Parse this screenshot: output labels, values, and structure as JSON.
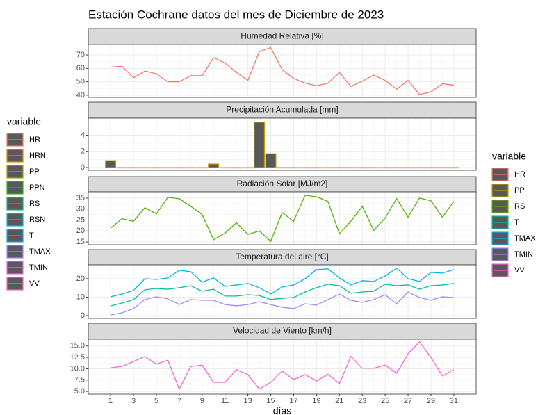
{
  "title": "Estación Cochrane datos del mes de Diciembre de 2023",
  "x_axis": {
    "label": "días",
    "lim": [
      -0.95,
      32.95
    ],
    "ticks": [
      1,
      3,
      5,
      7,
      9,
      11,
      13,
      15,
      17,
      19,
      21,
      23,
      25,
      27,
      29,
      31
    ]
  },
  "legends": [
    {
      "title": "variable",
      "entries": [
        {
          "name": "HR",
          "color": "#F8766D"
        },
        {
          "name": "HRN",
          "color": "#D89000"
        },
        {
          "name": "PP",
          "color": "#A3A500"
        },
        {
          "name": "PPN",
          "color": "#39B600"
        },
        {
          "name": "RS",
          "color": "#00BF7D"
        },
        {
          "name": "RSN",
          "color": "#00BFC4"
        },
        {
          "name": "T",
          "color": "#00B0F6"
        },
        {
          "name": "TMAX",
          "color": "#9590FF"
        },
        {
          "name": "TMIN",
          "color": "#E76BF3"
        },
        {
          "name": "VV",
          "color": "#FF62BC"
        }
      ]
    },
    {
      "title": "variable",
      "entries": [
        {
          "name": "HR",
          "color": "#F8766D"
        },
        {
          "name": "PP",
          "color": "#C49A00"
        },
        {
          "name": "RS",
          "color": "#53B400"
        },
        {
          "name": "T",
          "color": "#00C094"
        },
        {
          "name": "TMAX",
          "color": "#00B6EB"
        },
        {
          "name": "TMIN",
          "color": "#A58AFF"
        },
        {
          "name": "VV",
          "color": "#FB61D7"
        }
      ]
    }
  ],
  "chart_data": [
    {
      "type": "line",
      "title": "Humedad Relativa [%]",
      "ylim": [
        38.4,
        77.8
      ],
      "yticks": [
        40,
        50,
        60,
        70
      ],
      "x": [
        1,
        2,
        3,
        4,
        5,
        6,
        7,
        8,
        9,
        10,
        11,
        12,
        13,
        14,
        15,
        16,
        17,
        18,
        19,
        20,
        21,
        22,
        23,
        24,
        25,
        26,
        27,
        28,
        29,
        30,
        31
      ],
      "series": [
        {
          "name": "HR",
          "color": "#F8766D",
          "values": [
            61,
            61.5,
            53,
            58,
            56,
            50,
            50,
            54.5,
            54.5,
            68,
            64,
            57,
            51,
            72.5,
            75.5,
            59,
            52.5,
            49,
            47,
            49,
            57,
            46.5,
            50.5,
            55,
            51,
            44.5,
            51,
            40.5,
            42.5,
            48.5,
            47.5
          ]
        }
      ]
    },
    {
      "type": "bar",
      "title": "Precipitación Acumulada [mm]",
      "ylim": [
        -0.34,
        6.1
      ],
      "yticks": [
        0,
        2,
        4
      ],
      "x": [
        1,
        2,
        3,
        4,
        5,
        6,
        7,
        8,
        9,
        10,
        11,
        12,
        13,
        14,
        15,
        16,
        17,
        18,
        19,
        20,
        21,
        22,
        23,
        24,
        25,
        26,
        27,
        28,
        29,
        30,
        31
      ],
      "series": [
        {
          "name": "PP",
          "color": "#C49A00",
          "values": [
            0.85,
            0,
            0,
            0,
            0,
            0,
            0,
            0,
            0,
            0.43,
            0,
            0,
            0,
            5.6,
            1.7,
            0,
            0,
            0,
            0,
            0,
            0,
            0,
            0,
            0,
            0,
            0,
            0,
            0,
            0,
            0,
            0
          ]
        }
      ]
    },
    {
      "type": "line",
      "title": "Radiación Solar [MJ/m2]",
      "ylim": [
        13.75,
        37.8
      ],
      "yticks": [
        15,
        20,
        25,
        30,
        35
      ],
      "x": [
        1,
        2,
        3,
        4,
        5,
        6,
        7,
        8,
        9,
        10,
        11,
        12,
        13,
        14,
        15,
        16,
        17,
        18,
        19,
        20,
        21,
        22,
        23,
        24,
        25,
        26,
        27,
        28,
        29,
        30,
        31
      ],
      "series": [
        {
          "name": "RS",
          "color": "#53B400",
          "values": [
            21.25,
            25.6,
            24.4,
            30.6,
            27.8,
            35.3,
            34.7,
            31.25,
            27.5,
            16,
            19,
            23.75,
            18.4,
            20,
            15.3,
            28.4,
            24.4,
            36.25,
            35.6,
            33.4,
            18.75,
            24.4,
            31.25,
            20.3,
            25.9,
            34.7,
            26.25,
            35,
            33.75,
            26.25,
            33.4
          ]
        }
      ]
    },
    {
      "type": "line",
      "title": "Temperatura del aire [°C]",
      "ylim": [
        -1.5,
        27.5
      ],
      "yticks": [
        0,
        10,
        20
      ],
      "x": [
        1,
        2,
        3,
        4,
        5,
        6,
        7,
        8,
        9,
        10,
        11,
        12,
        13,
        14,
        15,
        16,
        17,
        18,
        19,
        20,
        21,
        22,
        23,
        24,
        25,
        26,
        27,
        28,
        29,
        30,
        31
      ],
      "series": [
        {
          "name": "T",
          "color": "#00C094",
          "values": [
            5.3,
            6.8,
            8.7,
            14,
            14.7,
            14.3,
            15.1,
            16.2,
            13.2,
            14.3,
            10.6,
            10.6,
            11.3,
            10.9,
            8.7,
            9.4,
            9.8,
            12.8,
            15.1,
            17,
            16.2,
            12.1,
            12.8,
            13.2,
            17,
            16.2,
            16.6,
            14.3,
            16.2,
            16.6,
            17.4
          ]
        },
        {
          "name": "TMAX",
          "color": "#00B6EB",
          "values": [
            10.2,
            11.7,
            13.6,
            20,
            19.6,
            20.4,
            24.5,
            23.8,
            18.1,
            20.4,
            15.8,
            16.6,
            17.4,
            15.1,
            11.7,
            15.5,
            16.6,
            20,
            24.9,
            25.3,
            20.4,
            16.6,
            18.9,
            18.5,
            21.5,
            25.7,
            20,
            18.5,
            23.4,
            23,
            24.9
          ]
        },
        {
          "name": "TMIN",
          "color": "#A58AFF",
          "values": [
            0.4,
            1.5,
            3.8,
            8.7,
            10.2,
            9.1,
            6,
            8.7,
            8.3,
            8.3,
            6,
            5.3,
            6,
            7.5,
            6,
            4.5,
            3.8,
            6.4,
            5.7,
            8.7,
            11.7,
            8.3,
            7.2,
            8.7,
            11.3,
            6.4,
            12.8,
            9.8,
            8.3,
            10.2,
            9.8
          ]
        }
      ]
    },
    {
      "type": "line",
      "title": "Velocidad de Viento [km/h]",
      "ylim": [
        4.4,
        16.5
      ],
      "yticks": [
        {
          "value": 5,
          "label": "5.0"
        },
        {
          "value": 7.5,
          "label": "7.5"
        },
        {
          "value": 10,
          "label": "10.0"
        },
        {
          "value": 12.5,
          "label": "12.5"
        },
        {
          "value": 15,
          "label": "15.0"
        }
      ],
      "x": [
        1,
        2,
        3,
        4,
        5,
        6,
        7,
        8,
        9,
        10,
        11,
        12,
        13,
        14,
        15,
        16,
        17,
        18,
        19,
        20,
        21,
        22,
        23,
        24,
        25,
        26,
        27,
        28,
        29,
        30,
        31
      ],
      "series": [
        {
          "name": "VV",
          "color": "#FB61D7",
          "values": [
            10.2,
            10.5,
            11.6,
            12.7,
            11,
            11.9,
            5.5,
            10.5,
            10.8,
            7,
            7,
            9.8,
            8.7,
            5.5,
            7,
            9.5,
            7.6,
            8.7,
            7.3,
            8.8,
            6.7,
            12.7,
            10.1,
            10.1,
            10.8,
            9,
            13.3,
            15.9,
            12.5,
            8.4,
            9.8
          ]
        }
      ]
    }
  ]
}
